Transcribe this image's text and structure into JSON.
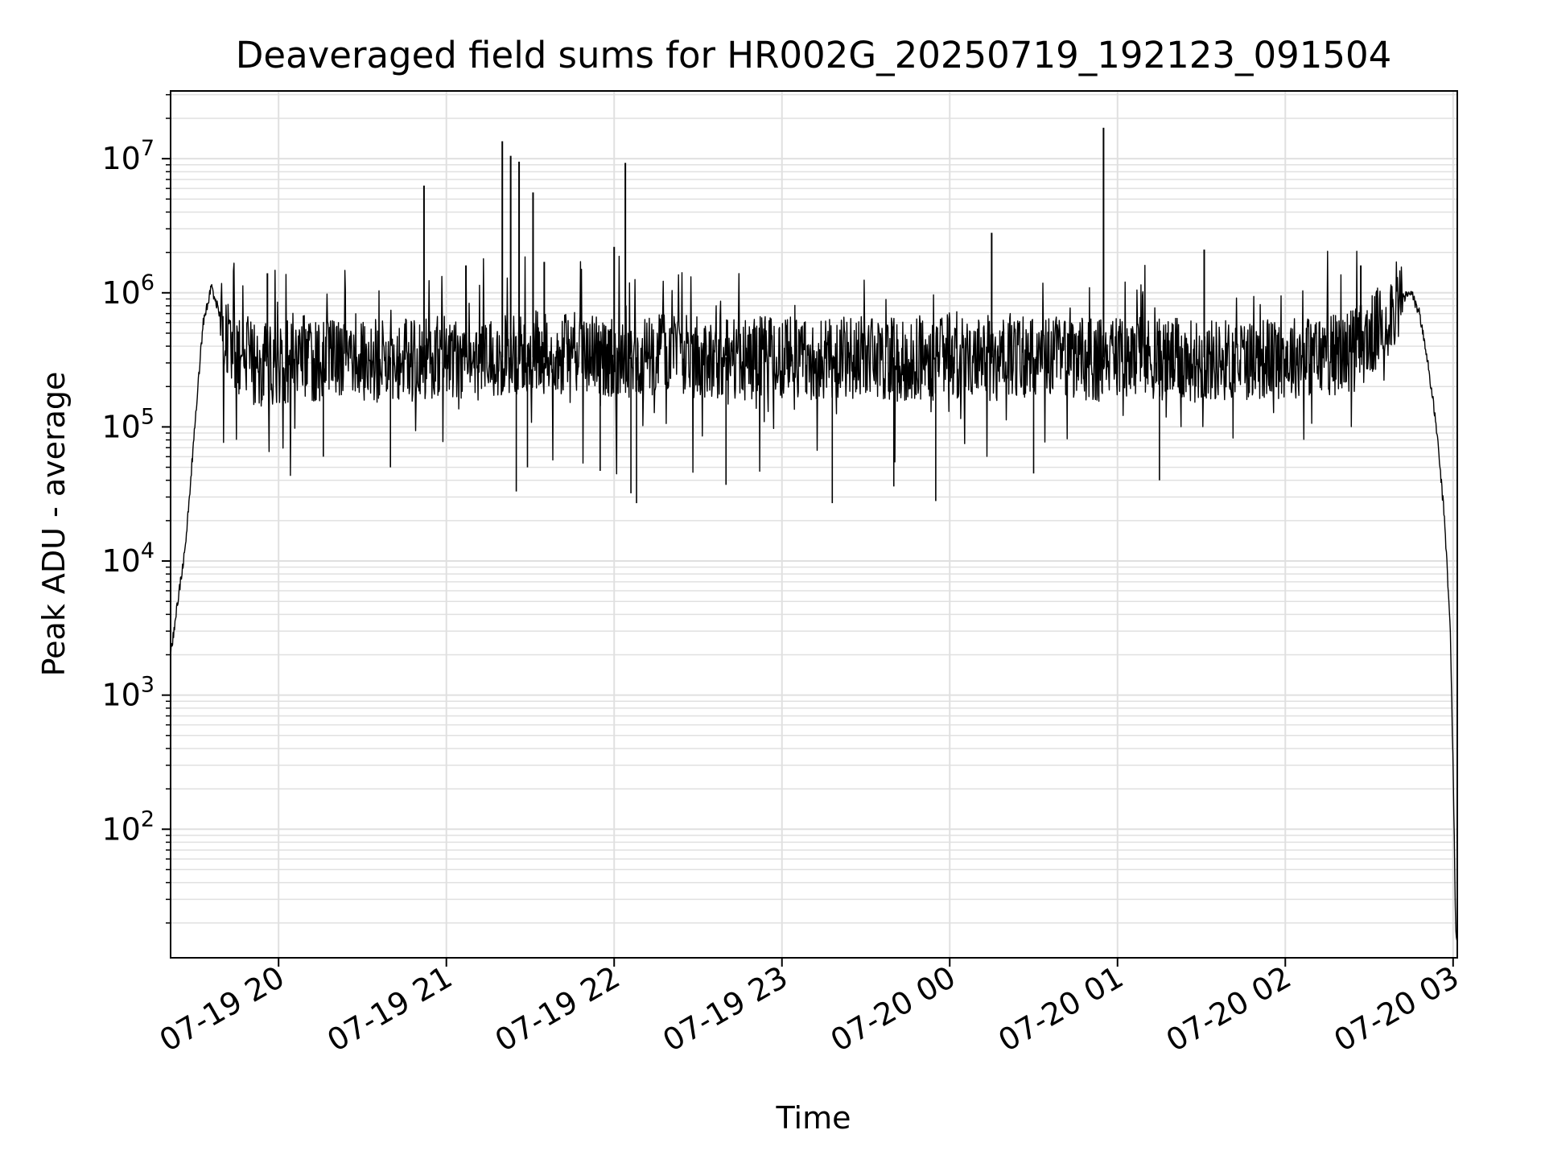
{
  "chart_data": {
    "type": "line",
    "title": "Deaveraged field sums for HR002G_20250719_192123_091504",
    "xlabel": "Time",
    "ylabel": "Peak ADU - average",
    "yscale": "log",
    "ylim": [
      11,
      32000000
    ],
    "xlim": [
      "2025-07-19 19:21:23",
      "2025-07-20 03:01:30"
    ],
    "grid": true,
    "line_color": "#000000",
    "grid_color": "#e0e0e0",
    "x_ticks": [
      {
        "label": "07-19 20",
        "value": "2025-07-19 20:00"
      },
      {
        "label": "07-19 21",
        "value": "2025-07-19 21:00"
      },
      {
        "label": "07-19 22",
        "value": "2025-07-19 22:00"
      },
      {
        "label": "07-19 23",
        "value": "2025-07-19 23:00"
      },
      {
        "label": "07-20 00",
        "value": "2025-07-20 00:00"
      },
      {
        "label": "07-20 01",
        "value": "2025-07-20 01:00"
      },
      {
        "label": "07-20 02",
        "value": "2025-07-20 02:00"
      },
      {
        "label": "07-20 03",
        "value": "2025-07-20 03:00"
      }
    ],
    "y_ticks": [
      {
        "base": "10",
        "exp": "2",
        "value": 100
      },
      {
        "base": "10",
        "exp": "3",
        "value": 1000
      },
      {
        "base": "10",
        "exp": "4",
        "value": 10000
      },
      {
        "base": "10",
        "exp": "5",
        "value": 100000
      },
      {
        "base": "10",
        "exp": "6",
        "value": 1000000
      },
      {
        "base": "10",
        "exp": "7",
        "value": 10000000
      }
    ],
    "series": [
      {
        "x": [
          "2025-07-19 19:21:23",
          "2025-07-19 19:24",
          "2025-07-19 19:27",
          "2025-07-19 19:30",
          "2025-07-19 19:33",
          "2025-07-19 19:36",
          "2025-07-19 19:39",
          "2025-07-19 19:42",
          "2025-07-19 19:45",
          "2025-07-19 19:48",
          "2025-07-19 19:51",
          "2025-07-19 19:54",
          "2025-07-19 19:57",
          "2025-07-19 20:02",
          "2025-07-19 20:07",
          "2025-07-19 20:12",
          "2025-07-19 20:17",
          "2025-07-19 20:25",
          "2025-07-19 20:35",
          "2025-07-19 20:45",
          "2025-07-19 20:50",
          "2025-07-19 20:53",
          "2025-07-19 21:00",
          "2025-07-19 21:08",
          "2025-07-19 21:14",
          "2025-07-19 21:18",
          "2025-07-19 21:20",
          "2025-07-19 21:24",
          "2025-07-19 21:26",
          "2025-07-19 21:28",
          "2025-07-19 21:32",
          "2025-07-19 21:40",
          "2025-07-19 21:50",
          "2025-07-19 22:00",
          "2025-07-19 22:04",
          "2025-07-19 22:05",
          "2025-07-19 22:15",
          "2025-07-19 22:30",
          "2025-07-19 22:45",
          "2025-07-19 23:00",
          "2025-07-19 23:15",
          "2025-07-19 23:30",
          "2025-07-19 23:45",
          "2025-07-20 00:00",
          "2025-07-20 00:15",
          "2025-07-20 00:30",
          "2025-07-20 00:45",
          "2025-07-20 00:55",
          "2025-07-20 01:00",
          "2025-07-20 01:15",
          "2025-07-20 01:30",
          "2025-07-20 01:45",
          "2025-07-20 02:00",
          "2025-07-20 02:10",
          "2025-07-20 02:20",
          "2025-07-20 02:30",
          "2025-07-20 02:35",
          "2025-07-20 02:40",
          "2025-07-20 02:45",
          "2025-07-20 02:48",
          "2025-07-20 02:51",
          "2025-07-20 02:54",
          "2025-07-20 02:57",
          "2025-07-20 02:59",
          "2025-07-20 03:00",
          "2025-07-20 03:01"
        ],
        "y": [
          2000,
          5000,
          15000,
          100000,
          600000,
          1100000,
          700000,
          450000,
          300000,
          350000,
          300000,
          280000,
          300000,
          290000,
          350000,
          320000,
          300000,
          330000,
          310000,
          330000,
          300000,
          320000,
          350000,
          310000,
          330000,
          350000,
          340000,
          330000,
          350000,
          340000,
          360000,
          350000,
          330000,
          340000,
          350000,
          330000,
          340000,
          330000,
          320000,
          330000,
          320000,
          330000,
          310000,
          330000,
          320000,
          330000,
          320000,
          310000,
          330000,
          320000,
          310000,
          320000,
          330000,
          340000,
          350000,
          450000,
          600000,
          850000,
          1000000,
          700000,
          300000,
          100000,
          20000,
          3000,
          300,
          15
        ]
      }
    ],
    "spikes": [
      {
        "x": "2025-07-19 19:56",
        "y": 1400000
      },
      {
        "x": "2025-07-19 20:52",
        "y": 6300000
      },
      {
        "x": "2025-07-19 21:07",
        "y": 1600000
      },
      {
        "x": "2025-07-19 21:20",
        "y": 13500000
      },
      {
        "x": "2025-07-19 21:23",
        "y": 10500000
      },
      {
        "x": "2025-07-19 21:26",
        "y": 9500000
      },
      {
        "x": "2025-07-19 21:31",
        "y": 5600000
      },
      {
        "x": "2025-07-19 21:35",
        "y": 1700000
      },
      {
        "x": "2025-07-19 22:00",
        "y": 2200000
      },
      {
        "x": "2025-07-19 22:04",
        "y": 9300000
      },
      {
        "x": "2025-07-20 00:15",
        "y": 2800000
      },
      {
        "x": "2025-07-20 00:55",
        "y": 17000000
      },
      {
        "x": "2025-07-20 01:31",
        "y": 2100000
      },
      {
        "x": "2025-07-20 02:27",
        "y": 1600000
      }
    ],
    "dips": [
      {
        "x": "2025-07-19 20:16",
        "y": 60000
      },
      {
        "x": "2025-07-19 20:40",
        "y": 50000
      },
      {
        "x": "2025-07-19 21:25",
        "y": 33000
      },
      {
        "x": "2025-07-19 21:29",
        "y": 50000
      },
      {
        "x": "2025-07-19 21:55",
        "y": 47000
      },
      {
        "x": "2025-07-19 22:06",
        "y": 32000
      },
      {
        "x": "2025-07-19 22:08",
        "y": 27000
      },
      {
        "x": "2025-07-19 22:40",
        "y": 37000
      },
      {
        "x": "2025-07-19 23:18",
        "y": 27000
      },
      {
        "x": "2025-07-19 23:40",
        "y": 36000
      },
      {
        "x": "2025-07-19 23:55",
        "y": 28000
      },
      {
        "x": "2025-07-20 00:30",
        "y": 45000
      },
      {
        "x": "2025-07-20 01:15",
        "y": 40000
      }
    ]
  }
}
